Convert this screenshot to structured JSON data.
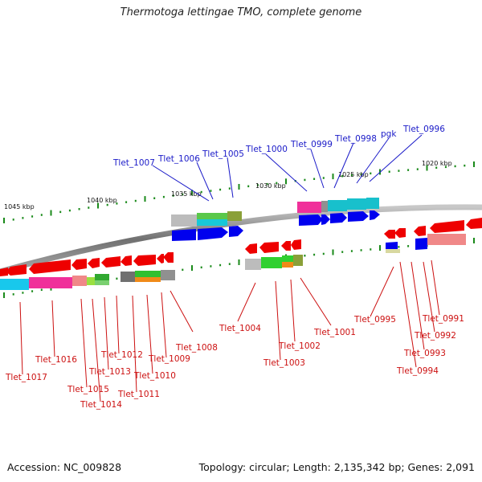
{
  "title": "Thermotoga lettingae TMO, complete genome",
  "footer": {
    "accession": "Accession: NC_009828",
    "topology": "Topology: circular; Length: 2,135,342 bp; Genes: 2,091"
  },
  "scale_labels": [
    "1045 kbp",
    "1040 kbp",
    "1035 kbp",
    "1030 kbp",
    "1025 kbp",
    "1020 kbp"
  ],
  "top_genes": [
    "Tlet_1007",
    "Tlet_1006",
    "Tlet_1005",
    "Tlet_1000",
    "Tlet_0999",
    "Tlet_0998",
    "pgk",
    "Tlet_0996"
  ],
  "bottom_genes": [
    "Tlet_1017",
    "Tlet_1016",
    "Tlet_1015",
    "Tlet_1014",
    "Tlet_1013",
    "Tlet_1012",
    "Tlet_1011",
    "Tlet_1010",
    "Tlet_1009",
    "Tlet_1008",
    "Tlet_1004",
    "Tlet_1003",
    "Tlet_1002",
    "Tlet_1001",
    "Tlet_0995",
    "Tlet_0994",
    "Tlet_0993",
    "Tlet_0992",
    "Tlet_0991"
  ],
  "colors": {
    "forward_gene": "#0000ee",
    "reverse_gene": "#ee0000",
    "top_label": "#1a1ac8",
    "bottom_label": "#cc1010",
    "backbone": "#808080",
    "tick": "#1a8a1a"
  }
}
